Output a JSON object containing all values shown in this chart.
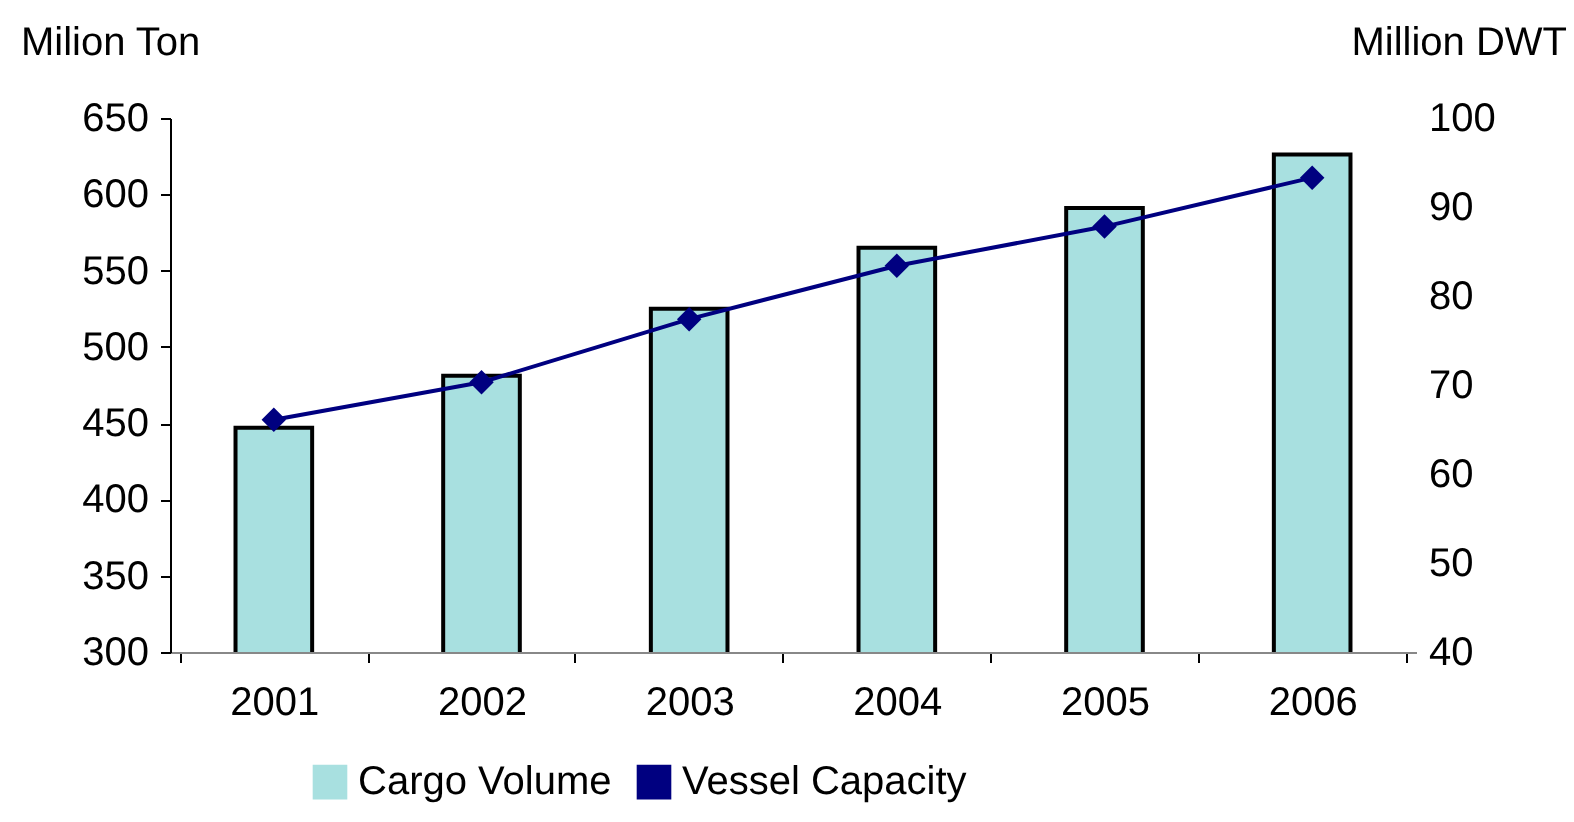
{
  "chart_data": {
    "type": "bar",
    "ylabel": "Milion Ton",
    "y2label": "Million DWT",
    "categories": [
      "2001",
      "2002",
      "2003",
      "2004",
      "2005",
      "2006"
    ],
    "series": [
      {
        "name": "Cargo Volume",
        "color": "#a8e0e0",
        "values": [
          447,
          481,
          525,
          565,
          591,
          626
        ]
      },
      {
        "name": "Vessel Capacity",
        "type": "line",
        "axis": "y2",
        "color": "#000080",
        "marker": "diamond",
        "values": [
          66.1,
          70.3,
          77.4,
          83.4,
          87.8,
          93.3
        ]
      }
    ],
    "ylim": [
      300,
      650
    ],
    "yticks": [
      300,
      350,
      400,
      450,
      500,
      550,
      600,
      650
    ],
    "y2lim": [
      40,
      100
    ],
    "y2ticks": [
      40,
      50,
      60,
      70,
      80,
      90,
      100
    ],
    "legend": "bottom",
    "grid": false
  }
}
